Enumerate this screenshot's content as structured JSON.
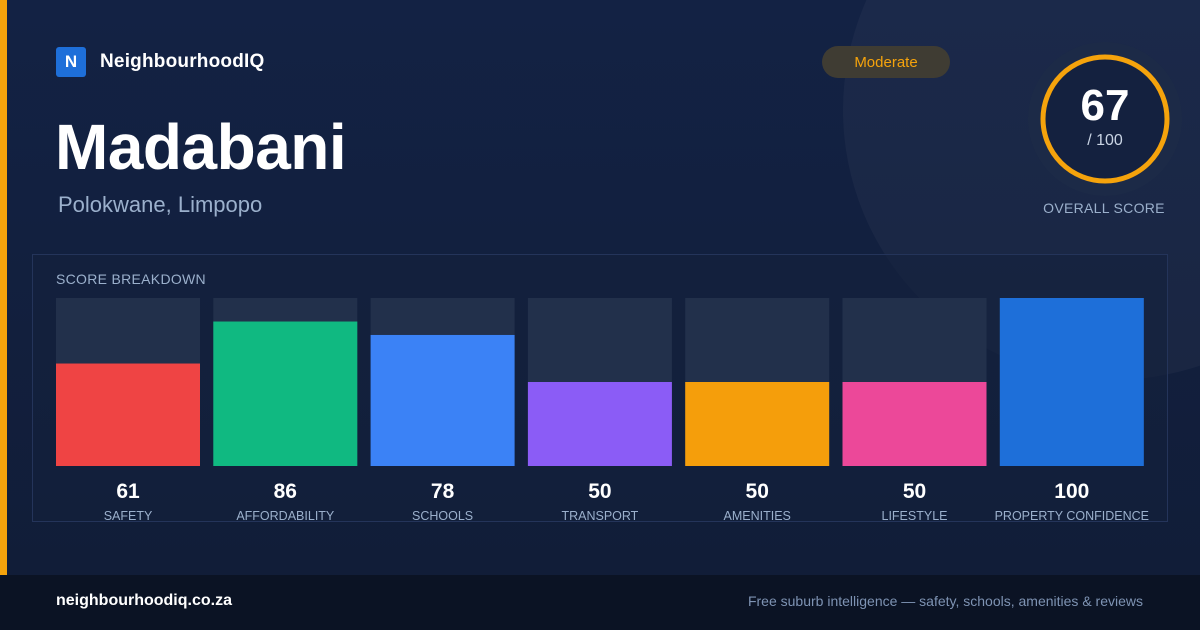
{
  "brand": {
    "mark": "N",
    "name": "NeighbourhoodIQ"
  },
  "suburb": {
    "name": "Madabani",
    "location": "Polokwane, Limpopo"
  },
  "rating_badge": "Moderate",
  "overall": {
    "score": 67,
    "max_label": "/ 100",
    "label": "OVERALL SCORE",
    "max": 100
  },
  "colors": {
    "accent": "#f5a30c",
    "track": "#22304b",
    "ring": "#f5a30c",
    "ring_track": "#1c2a47"
  },
  "chart_data": {
    "type": "bar",
    "title": "SCORE BREAKDOWN",
    "categories": [
      "SAFETY",
      "AFFORDABILITY",
      "SCHOOLS",
      "TRANSPORT",
      "AMENITIES",
      "LIFESTYLE",
      "PROPERTY CONFIDENCE"
    ],
    "values": [
      61,
      86,
      78,
      50,
      50,
      50,
      100
    ],
    "value_labels": [
      "61",
      "86",
      "78",
      "50",
      "50",
      "50",
      "100"
    ],
    "bar_colors": [
      "#ef4444",
      "#10b981",
      "#3b82f6",
      "#8b5cf6",
      "#f59e0b",
      "#ec4899",
      "#1e6fd9"
    ],
    "ylim": [
      0,
      100
    ],
    "grid": false,
    "legend": "none"
  },
  "footer": {
    "site": "neighbourhoodiq.co.za",
    "tagline": "Free suburb intelligence — safety, schools, amenities & reviews"
  }
}
